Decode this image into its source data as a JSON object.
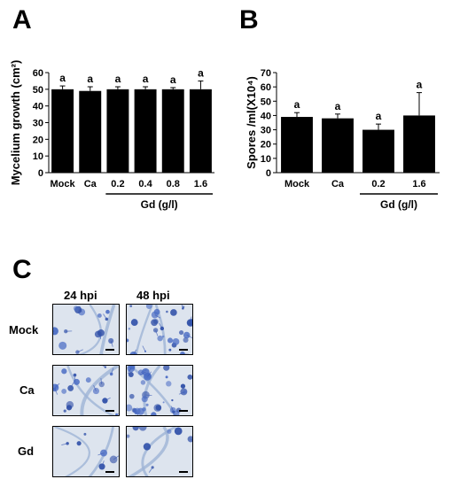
{
  "panels": {
    "a_letter": "A",
    "b_letter": "B",
    "c_letter": "C"
  },
  "chart_data": [
    {
      "type": "bar",
      "panel": "A",
      "categories": [
        "Mock",
        "Ca",
        "0.2",
        "0.4",
        "0.8",
        "1.6"
      ],
      "values": [
        50,
        49,
        50,
        50,
        50,
        50
      ],
      "errors": [
        2,
        2.5,
        1.5,
        1.5,
        1,
        5
      ],
      "significance": [
        "a",
        "a",
        "a",
        "a",
        "a",
        "a"
      ],
      "ylabel": "Mycelium growth (cm²)",
      "group_label": "Gd (g/l)",
      "ylim": [
        0,
        60
      ],
      "yticks": [
        0,
        10,
        20,
        30,
        40,
        50,
        60
      ],
      "bar_color": "#000000"
    },
    {
      "type": "bar",
      "panel": "B",
      "categories": [
        "Mock",
        "Ca",
        "0.2",
        "1.6"
      ],
      "values": [
        39,
        38,
        30,
        40
      ],
      "errors": [
        3,
        3,
        4,
        16
      ],
      "significance": [
        "a",
        "a",
        "a",
        "a"
      ],
      "ylabel": "Spores /ml(X10⁴)",
      "group_label": "Gd (g/l)",
      "ylim": [
        0,
        70
      ],
      "yticks": [
        0,
        10,
        20,
        30,
        40,
        50,
        60,
        70
      ],
      "bar_color": "#000000"
    }
  ],
  "micrographs": {
    "columns": [
      "24 hpi",
      "48 hpi"
    ],
    "rows": [
      "Mock",
      "Ca",
      "Gd"
    ]
  }
}
